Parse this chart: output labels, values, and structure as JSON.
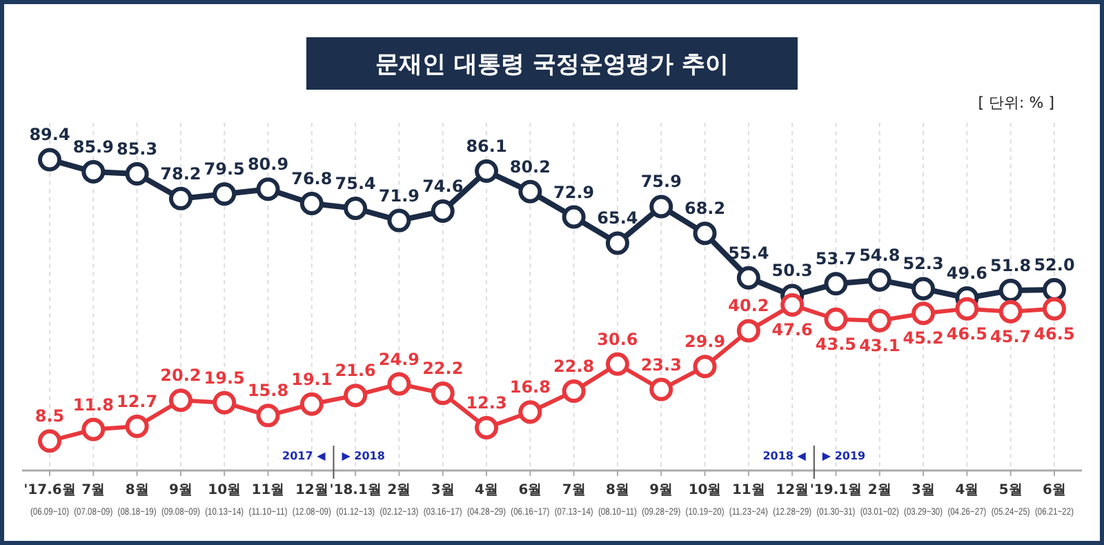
{
  "chart_data": {
    "type": "line",
    "title": "문재인 대통령 국정운영평가 추이",
    "categories": [
      "'17.6월\n(06.09~10)",
      "7월\n(07.08~09)",
      "8월\n(08.18~19)",
      "9월\n(09.08~09)",
      "10월\n(10.13~14)",
      "11월\n(11.10~11)",
      "12월\n(12.08~09)",
      "'18.1월\n(01.12~13)",
      "2월\n(02.12~13)",
      "3월\n(03.16~17)",
      "4월\n(04.28~29)",
      "6월\n(06.16~17)",
      "7월\n(07.13~14)",
      "8월\n(08.10~11)",
      "9월\n(09.28~29)",
      "10월\n(10.19~20)",
      "11월\n(11.23~24)",
      "12월\n(12.28~29)",
      "'19.1월\n(01.30~31)",
      "2월\n(03.01~02)",
      "3월\n(03.29~30)",
      "4월\n(04.26~27)",
      "5월\n(05.24~25)",
      "6월\n(06.21~22)"
    ],
    "series": [
      {
        "color": "#1c2b45",
        "values": [
          89.4,
          85.9,
          85.3,
          78.2,
          79.5,
          80.9,
          76.8,
          75.4,
          71.9,
          74.6,
          86.1,
          80.2,
          72.9,
          65.4,
          75.9,
          68.2,
          55.4,
          50.3,
          53.7,
          54.8,
          52.3,
          49.6,
          51.8,
          52.0
        ],
        "value_labels": [
          "89.4",
          "85.9",
          "85.3",
          "78.2",
          "79.5",
          "80.9",
          "76.8",
          "75.4",
          "71.9",
          "74.6",
          "86.1",
          "80.2",
          "72.9",
          "65.4",
          "75.9",
          "68.2",
          "55.4",
          "50.3",
          "53.7",
          "54.8",
          "52.3",
          "49.6",
          "51.8",
          "52.0"
        ]
      },
      {
        "color": "#e8383d",
        "values": [
          8.5,
          11.8,
          12.7,
          20.2,
          19.5,
          15.8,
          19.1,
          21.6,
          24.9,
          22.2,
          12.3,
          16.8,
          22.8,
          30.6,
          23.3,
          29.9,
          40.2,
          47.6,
          43.5,
          43.1,
          45.2,
          46.5,
          45.7,
          46.5
        ]
      }
    ],
    "ylim": [
      0,
      100
    ],
    "tick_labels": "x",
    "data_labels": true,
    "grid": "x",
    "marker": "circle",
    "line_style": "solid",
    "annotations": [
      "[ 단위: % ]",
      "2017 ◀",
      "▶ 2018",
      "2018 ◀",
      "▶ 2019"
    ]
  }
}
